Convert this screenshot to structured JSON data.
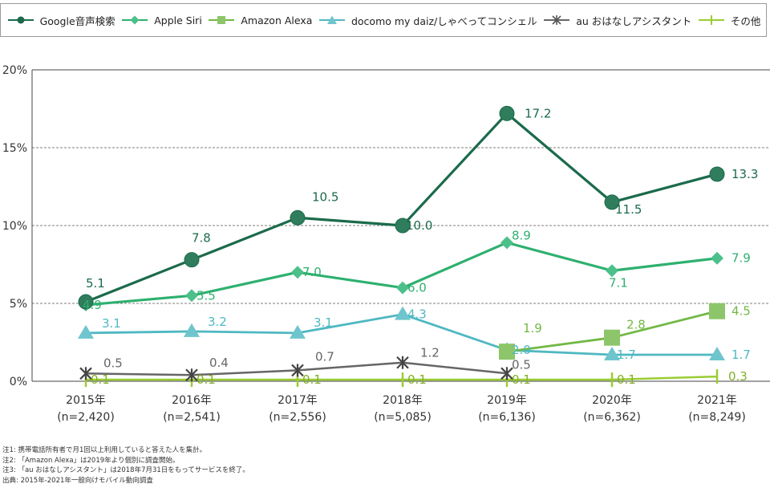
{
  "chart_data": {
    "type": "line",
    "title": "",
    "xlabel": "",
    "ylabel": "",
    "ylim": [
      0,
      20
    ],
    "yticks": [
      "0%",
      "5%",
      "10%",
      "15%",
      "20%"
    ],
    "grid": "horizontal dashed at 5%, 10%, 15%",
    "legend_position": "top",
    "categories": [
      {
        "year": "2015年",
        "n": "(n=2,420)"
      },
      {
        "year": "2016年",
        "n": "(n=2,541)"
      },
      {
        "year": "2017年",
        "n": "(n=2,556)"
      },
      {
        "year": "2018年",
        "n": "(n=5,085)"
      },
      {
        "year": "2019年",
        "n": "(n=6,136)"
      },
      {
        "year": "2020年",
        "n": "(n=6,362)"
      },
      {
        "year": "2021年",
        "n": "(n=8,249)"
      }
    ],
    "series": [
      {
        "name": "Google音声検索",
        "color": "#1b6b4b",
        "marker": "circle",
        "values": [
          5.1,
          7.8,
          10.5,
          10.0,
          17.2,
          11.5,
          13.3
        ],
        "labels": [
          "5.1",
          "7.8",
          "10.5",
          "10.0",
          "17.2",
          "11.5",
          "13.3"
        ]
      },
      {
        "name": "Apple Siri",
        "color": "#2eb06f",
        "marker": "diamond",
        "values": [
          4.9,
          5.5,
          7.0,
          6.0,
          8.9,
          7.1,
          7.9
        ],
        "labels": [
          "4.9",
          "5.5",
          "7.0",
          "6.0",
          "8.9",
          "7.1",
          "7.9"
        ]
      },
      {
        "name": "Amazon Alexa",
        "color": "#72b845",
        "marker": "square",
        "values": [
          null,
          null,
          null,
          null,
          1.9,
          2.8,
          4.5
        ],
        "labels": [
          "",
          "",
          "",
          "",
          "1.9",
          "2.8",
          "4.5"
        ]
      },
      {
        "name": "docomo my daiz/しゃべってコンシェル",
        "color": "#4fb8c2",
        "marker": "triangle",
        "values": [
          3.1,
          3.2,
          3.1,
          4.3,
          2.0,
          1.7,
          1.7
        ],
        "labels": [
          "3.1",
          "3.2",
          "3.1",
          "4.3",
          "2.0",
          "1.7",
          "1.7"
        ]
      },
      {
        "name": "au おはなしアシスタント",
        "color": "#666666",
        "marker": "asterisk",
        "values": [
          0.5,
          0.4,
          0.7,
          1.2,
          0.5,
          null,
          null
        ],
        "labels": [
          "0.5",
          "0.4",
          "0.7",
          "1.2",
          "0.5",
          "",
          ""
        ]
      },
      {
        "name": "その他",
        "color": "#9acd32",
        "marker": "plus",
        "values": [
          0.1,
          0.1,
          0.1,
          0.1,
          0.1,
          0.1,
          0.3
        ],
        "labels": [
          "0.1",
          "0.1",
          "0.1",
          "0.1",
          "0.1",
          "0.1",
          "0.3"
        ]
      }
    ]
  },
  "notes": [
    "注1: 携帯電話所有者で月1回以上利用していると答えた人を集計。",
    "注2: 「Amazon Alexa」は2019年より個別に調査開始。",
    "注3: 「au おはなしアシスタント」は2018年7月31日をもってサービスを終了。",
    "出典: 2015年-2021年一般向けモバイル動向調査"
  ]
}
